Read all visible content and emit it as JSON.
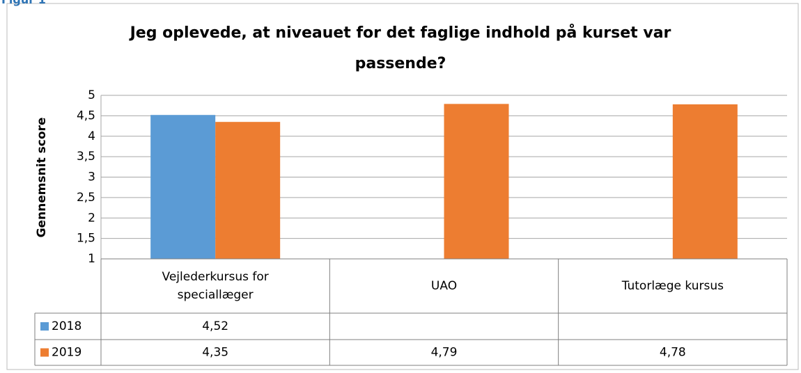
{
  "label": "Figur 1",
  "chart_data": {
    "type": "bar",
    "title": "Jeg oplevede, at niveauet for det faglige indhold på kurset var passende?",
    "y_label": "Gennemsnit score",
    "categories": [
      "Vejlederkursus for speciallæger",
      "UAO",
      "Tutorlæge kursus"
    ],
    "series": [
      {
        "name": "2018",
        "color": "#5b9bd5",
        "values": [
          4.52,
          null,
          null
        ],
        "value_labels": [
          "4,52",
          null,
          null
        ]
      },
      {
        "name": "2019",
        "color": "#ed7d31",
        "values": [
          4.35,
          4.79,
          4.78
        ],
        "value_labels": [
          "4,35",
          "4,79",
          "4,78"
        ]
      }
    ],
    "ylim": [
      1,
      5
    ],
    "yticks": [
      1,
      {
        "value": 1.5,
        "label": "1,5"
      },
      2,
      {
        "value": 2.5,
        "label": "2,5"
      },
      3,
      {
        "value": 3.5,
        "label": "3,5"
      },
      4,
      {
        "value": 4.5,
        "label": "4,5"
      },
      5
    ],
    "grid": true,
    "data_table": true
  }
}
